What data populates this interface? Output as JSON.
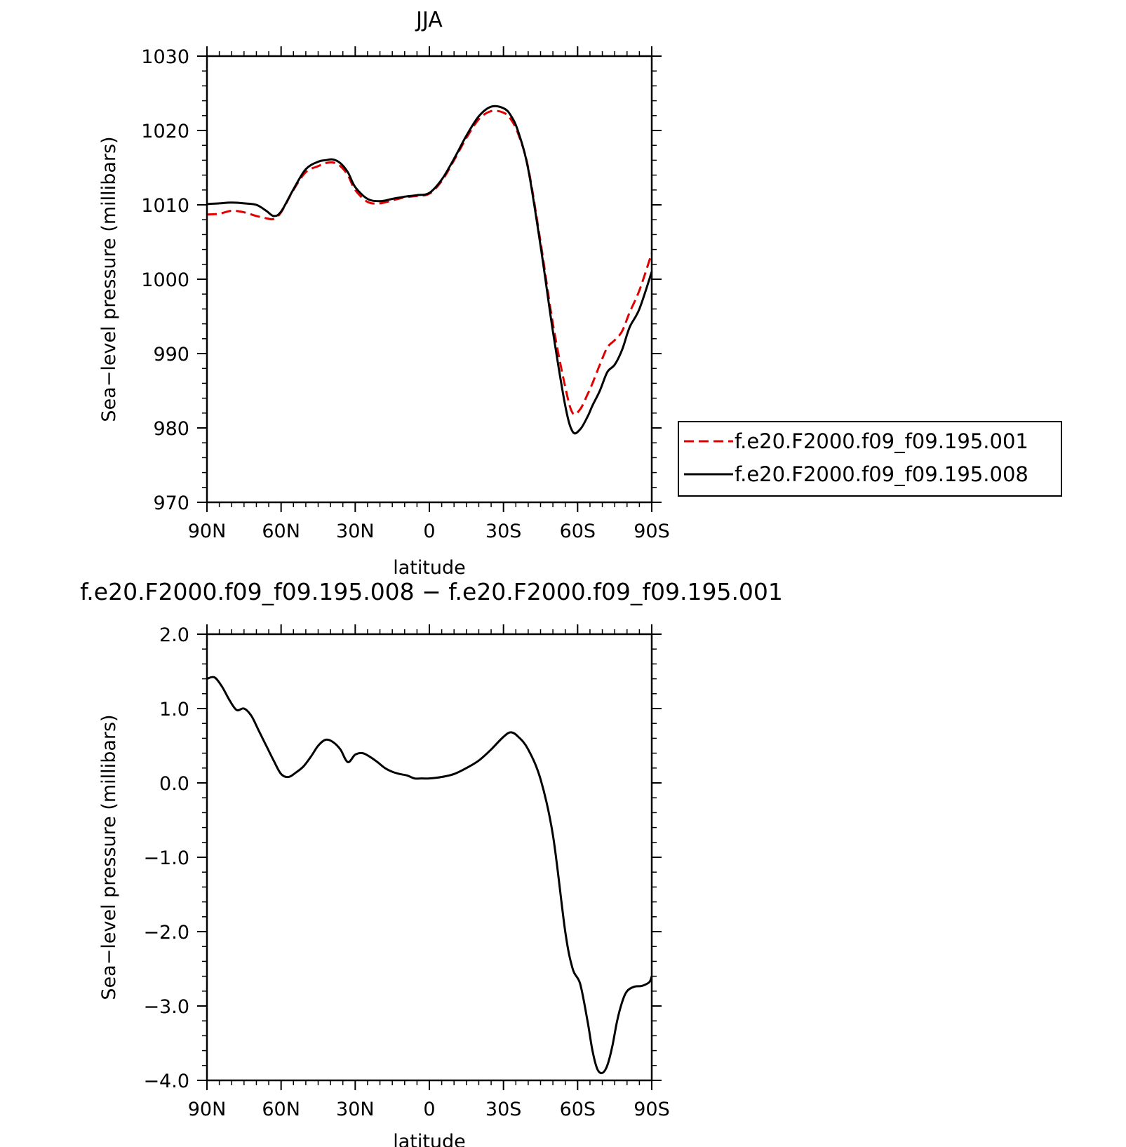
{
  "chart_data": [
    {
      "type": "line",
      "title": "JJA",
      "xlabel": "latitude",
      "ylabel": "Sea−level pressure (millibars)",
      "x_ticks": [
        -90,
        -60,
        -30,
        0,
        30,
        60,
        90
      ],
      "x_tick_labels": [
        "90N",
        "60N",
        "30N",
        "0",
        "30S",
        "60S",
        "90S"
      ],
      "ylim": [
        970,
        1030
      ],
      "y_ticks": [
        970,
        980,
        990,
        1000,
        1010,
        1020,
        1030
      ],
      "y_tick_labels": [
        "970",
        "980",
        "990",
        "1000",
        "1010",
        "1020",
        "1030"
      ],
      "xlim": [
        -90,
        90
      ],
      "grid": false,
      "legend_placement": "right",
      "x": [
        -90,
        -85,
        -80,
        -75,
        -70,
        -66,
        -63,
        -60,
        -55,
        -50,
        -45,
        -42,
        -39,
        -36,
        -33,
        -30,
        -25,
        -20,
        -15,
        -10,
        -5,
        0,
        5,
        10,
        15,
        20,
        25,
        30,
        33,
        36,
        40,
        45,
        50,
        55,
        58,
        61,
        64,
        66,
        69,
        72,
        75,
        78,
        81,
        85,
        90
      ],
      "series": [
        {
          "name": "f.e20.F2000.f09_f09.195.001",
          "color": "#e00000",
          "style": "dashed",
          "values": [
            1008.7,
            1008.8,
            1009.2,
            1009.0,
            1008.5,
            1008.2,
            1008.1,
            1009.0,
            1012.0,
            1014.4,
            1015.2,
            1015.6,
            1015.7,
            1015.2,
            1014.0,
            1012.0,
            1010.4,
            1010.2,
            1010.6,
            1011.0,
            1011.2,
            1011.5,
            1013.2,
            1016.0,
            1019.0,
            1021.5,
            1022.6,
            1022.4,
            1021.5,
            1019.5,
            1015.0,
            1005.0,
            994.0,
            985.5,
            982.0,
            982.5,
            984.5,
            986.0,
            988.5,
            990.8,
            991.8,
            993.0,
            995.5,
            998.5,
            1003.5
          ]
        },
        {
          "name": "f.e20.F2000.f09_f09.195.008",
          "color": "#000000",
          "style": "solid",
          "values": [
            1010.1,
            1010.2,
            1010.3,
            1010.2,
            1010.0,
            1009.2,
            1008.5,
            1009.1,
            1012.1,
            1014.8,
            1015.8,
            1016.0,
            1016.1,
            1015.6,
            1014.4,
            1012.4,
            1010.8,
            1010.5,
            1010.8,
            1011.1,
            1011.3,
            1011.6,
            1013.4,
            1016.2,
            1019.3,
            1021.9,
            1023.2,
            1023.0,
            1022.0,
            1019.8,
            1014.8,
            1004.5,
            993.0,
            983.0,
            979.5,
            979.8,
            981.5,
            983.0,
            985.0,
            987.5,
            988.5,
            990.5,
            993.5,
            996.0,
            1001.0
          ]
        }
      ]
    },
    {
      "type": "line",
      "title": "f.e20.F2000.f09_f09.195.008 − f.e20.F2000.f09_f09.195.001",
      "xlabel": "latitude",
      "ylabel": "Sea−level pressure (millibars)",
      "x_ticks": [
        -90,
        -60,
        -30,
        0,
        30,
        60,
        90
      ],
      "x_tick_labels": [
        "90N",
        "60N",
        "30N",
        "0",
        "30S",
        "60S",
        "90S"
      ],
      "ylim": [
        -4.0,
        2.0
      ],
      "y_ticks": [
        -4.0,
        -3.0,
        -2.0,
        -1.0,
        0.0,
        1.0,
        2.0
      ],
      "y_tick_labels": [
        "−4.0",
        "−3.0",
        "−2.0",
        "−1.0",
        "0.0",
        "1.0",
        "2.0"
      ],
      "xlim": [
        -90,
        90
      ],
      "grid": false,
      "x": [
        -90,
        -87,
        -84,
        -81,
        -78,
        -75,
        -72,
        -69,
        -66,
        -63,
        -60,
        -57,
        -54,
        -51,
        -48,
        -45,
        -42,
        -39,
        -36,
        -33,
        -30,
        -27,
        -24,
        -21,
        -18,
        -15,
        -12,
        -9,
        -6,
        -3,
        0,
        5,
        10,
        15,
        20,
        25,
        30,
        33,
        36,
        40,
        45,
        50,
        55,
        58,
        61,
        64,
        66,
        68,
        70,
        72,
        74,
        76,
        78,
        80,
        83,
        86,
        89,
        90
      ],
      "series": [
        {
          "name": "",
          "color": "#000000",
          "style": "solid",
          "values": [
            1.4,
            1.42,
            1.3,
            1.12,
            0.98,
            1.0,
            0.9,
            0.7,
            0.5,
            0.3,
            0.12,
            0.08,
            0.14,
            0.22,
            0.35,
            0.5,
            0.58,
            0.55,
            0.45,
            0.28,
            0.38,
            0.4,
            0.35,
            0.28,
            0.2,
            0.15,
            0.12,
            0.1,
            0.06,
            0.06,
            0.06,
            0.08,
            0.12,
            0.2,
            0.3,
            0.45,
            0.62,
            0.68,
            0.62,
            0.45,
            0.05,
            -0.7,
            -2.0,
            -2.5,
            -2.7,
            -3.2,
            -3.6,
            -3.85,
            -3.9,
            -3.8,
            -3.55,
            -3.2,
            -2.95,
            -2.8,
            -2.74,
            -2.73,
            -2.68,
            -2.6
          ]
        }
      ]
    }
  ]
}
